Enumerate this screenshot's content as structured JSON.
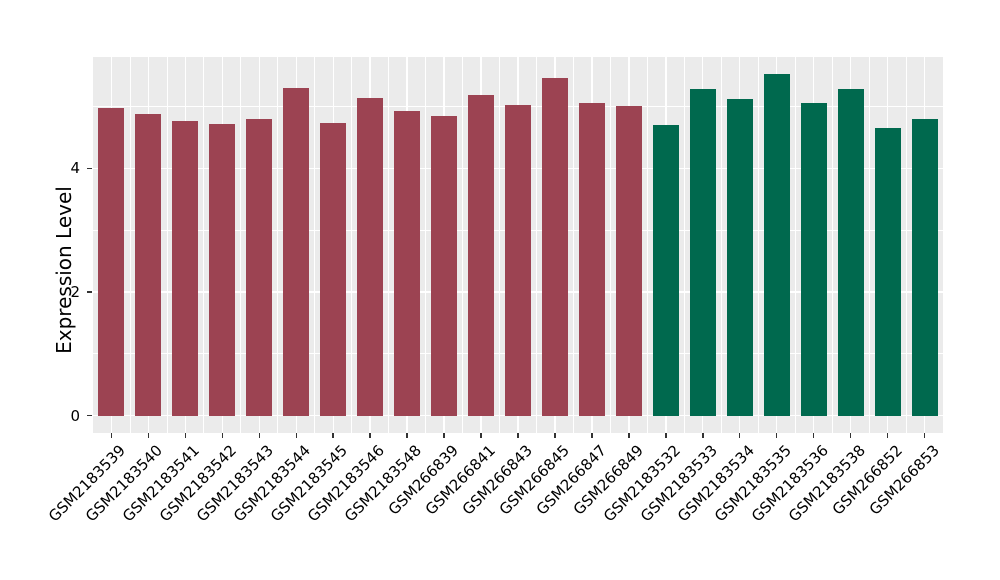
{
  "chart_data": {
    "type": "bar",
    "title": "",
    "xlabel": "",
    "ylabel": "Expression Level",
    "ylim": [
      -0.28,
      5.8
    ],
    "yticks": [
      {
        "label": "0",
        "value": 0
      },
      {
        "label": "2",
        "value": 2
      },
      {
        "label": "4",
        "value": 4
      }
    ],
    "grid": {
      "major_y": [
        0,
        2,
        4
      ],
      "minor_y": [
        1,
        3,
        5
      ],
      "color": "#FFFFFF",
      "visible": true
    },
    "legend_position": "none",
    "panel_background": "#EBEBEB",
    "group_colors": {
      "groupA": "#9C4352",
      "groupB": "#00694E"
    },
    "categories": [
      "GSM2183539",
      "GSM2183540",
      "GSM2183541",
      "GSM2183542",
      "GSM2183543",
      "GSM2183544",
      "GSM2183545",
      "GSM2183546",
      "GSM2183548",
      "GSM266839",
      "GSM266841",
      "GSM266843",
      "GSM266845",
      "GSM266847",
      "GSM266849",
      "GSM2183532",
      "GSM2183533",
      "GSM2183534",
      "GSM2183535",
      "GSM2183536",
      "GSM2183538",
      "GSM266852",
      "GSM266853"
    ],
    "values": [
      4.98,
      4.88,
      4.76,
      4.72,
      4.79,
      5.3,
      4.73,
      5.14,
      4.93,
      4.85,
      5.19,
      5.03,
      5.46,
      5.05,
      5.0,
      4.7,
      5.28,
      5.12,
      5.52,
      5.05,
      5.29,
      4.66,
      4.8
    ],
    "groups": [
      "groupA",
      "groupA",
      "groupA",
      "groupA",
      "groupA",
      "groupA",
      "groupA",
      "groupA",
      "groupA",
      "groupA",
      "groupA",
      "groupA",
      "groupA",
      "groupA",
      "groupA",
      "groupB",
      "groupB",
      "groupB",
      "groupB",
      "groupB",
      "groupB",
      "groupB",
      "groupB"
    ]
  }
}
